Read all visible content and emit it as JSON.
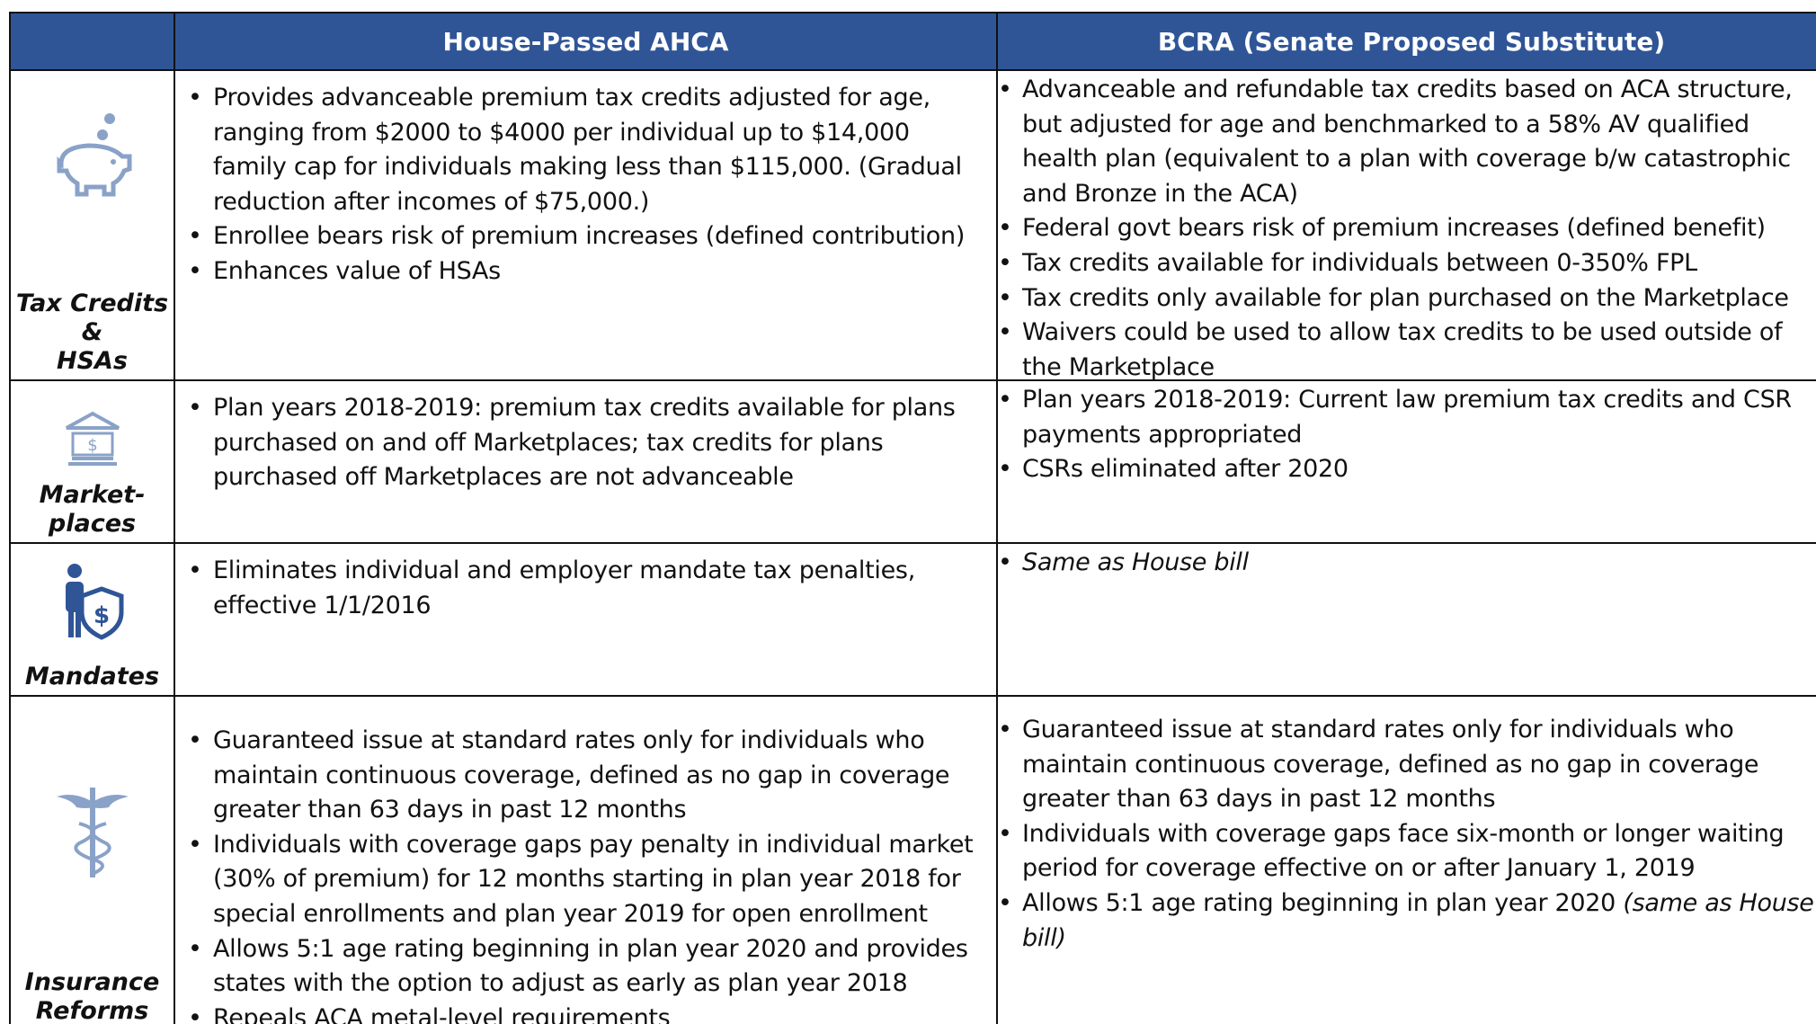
{
  "header": {
    "columns": [
      "House-Passed AHCA",
      "BCRA (Senate Proposed Substitute)"
    ]
  },
  "rows": [
    {
      "label": [
        "Tax Credits",
        "&",
        "HSAs"
      ],
      "house": [
        {
          "text": "Provides advanceable premium tax credits adjusted for age, ranging from $2000 to $4000 per individual up to $14,000 family cap for individuals making less than $115,000. (Gradual reduction after incomes of $75,000.)"
        },
        {
          "text": "Enrollee bears risk of premium increases (defined contribution)"
        },
        {
          "text": "Enhances value of HSAs"
        }
      ],
      "bcra": [
        {
          "text": "Advanceable and refundable tax credits based on ACA structure, but adjusted for age and benchmarked to a 58% AV qualified health plan (equivalent to a plan with coverage b/w catastrophic and Bronze in the ACA)"
        },
        {
          "text": "Federal govt bears risk of premium increases  (defined benefit)"
        },
        {
          "text": "Tax credits available for individuals between 0-350% FPL"
        },
        {
          "text": "Tax credits only available for plan purchased on the Marketplace"
        },
        {
          "text": "Waivers could be used to allow tax credits to be used outside of the Marketplace"
        }
      ]
    },
    {
      "label": [
        "Market-",
        "places"
      ],
      "house": [
        {
          "text": "Plan years 2018-2019: premium tax credits available for plans purchased on and off Marketplaces; tax credits for plans purchased off Marketplaces are not advanceable"
        }
      ],
      "bcra": [
        {
          "text": "Plan years 2018-2019: Current law premium tax credits and CSR payments appropriated"
        },
        {
          "text": "CSRs eliminated after 2020"
        }
      ]
    },
    {
      "label": [
        "Mandates"
      ],
      "house": [
        {
          "text": "Eliminates individual and employer mandate tax penalties, effective 1/1/2016"
        }
      ],
      "bcra": [
        {
          "italic": "Same as House bill"
        }
      ]
    },
    {
      "label": [
        "Insurance",
        "Reforms"
      ],
      "house": [
        {
          "text": "Guaranteed issue at standard rates only for individuals who maintain continuous coverage, defined as no gap in coverage greater than 63 days in past 12 months"
        },
        {
          "text": "Individuals with coverage gaps pay penalty in individual market (30% of premium) for 12 months starting in  plan year 2018  for special enrollments and plan year 2019 for open enrollment"
        },
        {
          "text": "Allows 5:1 age rating beginning in plan year 2020 and provides states with the option to adjust as early as plan year 2018"
        },
        {
          "text": "Repeals ACA metal-level requirements"
        }
      ],
      "bcra": [
        {
          "text": "Guaranteed issue at standard rates only for individuals who maintain continuous coverage, defined as no gap in coverage greater than 63 days in past 12 months"
        },
        {
          "text": "Individuals with coverage gaps face six-month or longer waiting period for coverage effective on or after January 1, 2019"
        },
        {
          "text": "Allows 5:1 age rating beginning in plan year 2020 ",
          "italic": "(same as House bill)"
        }
      ]
    }
  ]
}
